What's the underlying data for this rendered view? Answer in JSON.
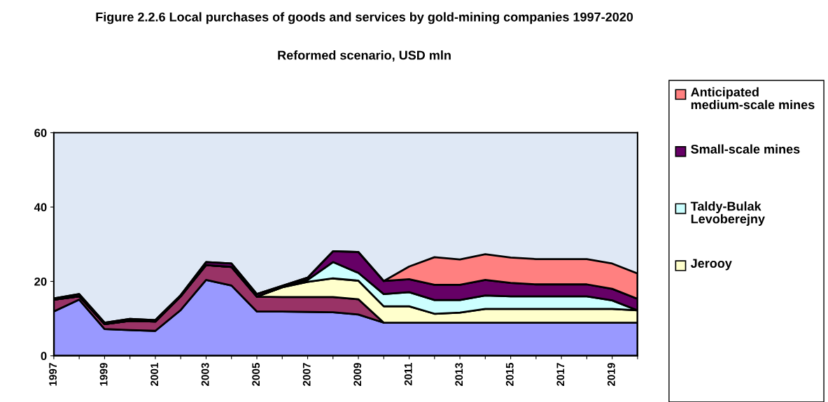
{
  "chart_data": {
    "type": "area",
    "stacked": true,
    "title": "Figure 2.2.6 Local purchases of goods and services by gold-mining companies 1997-2020",
    "subtitle": "Reformed scenario, USD mln",
    "categories": [
      "1997",
      null,
      "1999",
      null,
      "2001",
      null,
      "2003",
      null,
      "2005",
      null,
      "2007",
      null,
      "2009",
      null,
      "2011",
      null,
      "2013",
      null,
      "2015",
      null,
      "2017",
      null,
      "2019",
      null
    ],
    "series": [
      {
        "color": "#9999ff",
        "values": [
          11.9,
          15.1,
          7.2,
          6.9,
          6.7,
          12.3,
          20.4,
          18.9,
          11.9,
          11.9,
          11.8,
          11.7,
          11.1,
          8.9,
          8.9,
          8.9,
          8.9,
          8.9,
          8.9,
          8.9,
          8.9,
          8.9,
          8.9,
          8.9
        ]
      },
      {
        "color": "#993366",
        "values": [
          3.2,
          0.9,
          1.3,
          2.5,
          2.5,
          3.7,
          4.0,
          5.0,
          4.0,
          3.9,
          4.0,
          4.1,
          4.1,
          0,
          0,
          0,
          0,
          0,
          0,
          0,
          0,
          0,
          0,
          0
        ]
      },
      {
        "name": "Jerooy",
        "color": "#ffffcc",
        "values": [
          0,
          0,
          0,
          0,
          0,
          0,
          0,
          0,
          0,
          2.6,
          4.1,
          5.0,
          5.0,
          4.4,
          4.4,
          2.4,
          2.7,
          3.7,
          3.7,
          3.7,
          3.7,
          3.7,
          3.7,
          3.3
        ]
      },
      {
        "name": "Taldy-Bulak Levoberejny",
        "color": "#ccffff",
        "values": [
          0,
          0,
          0,
          0,
          0,
          0,
          0,
          0,
          0,
          0,
          0.5,
          4.4,
          2.1,
          3.3,
          3.8,
          3.7,
          3.4,
          3.6,
          3.4,
          3.4,
          3.4,
          3.4,
          2.3,
          0
        ]
      },
      {
        "name": "Small-scale mines",
        "color": "#660066",
        "values": [
          0.3,
          0.6,
          0.4,
          0.5,
          0.4,
          0.3,
          0.8,
          0.9,
          0.7,
          0.4,
          0.6,
          2.9,
          5.6,
          3.5,
          3.5,
          4.1,
          4.1,
          4.2,
          3.6,
          3.2,
          3.2,
          3.2,
          3.1,
          3.1
        ]
      },
      {
        "name": "Anticipated medium-scale mines",
        "color": "#ff8080",
        "values": [
          0,
          0,
          0,
          0,
          0,
          0,
          0,
          0,
          0,
          0,
          0,
          0,
          0,
          0,
          3.4,
          7.4,
          6.8,
          6.9,
          6.8,
          6.8,
          6.8,
          6.8,
          6.8,
          6.8
        ]
      }
    ],
    "ylim": [
      0,
      60
    ],
    "yticks": [
      0,
      20,
      40,
      60
    ],
    "grid": false,
    "legend": "right"
  }
}
